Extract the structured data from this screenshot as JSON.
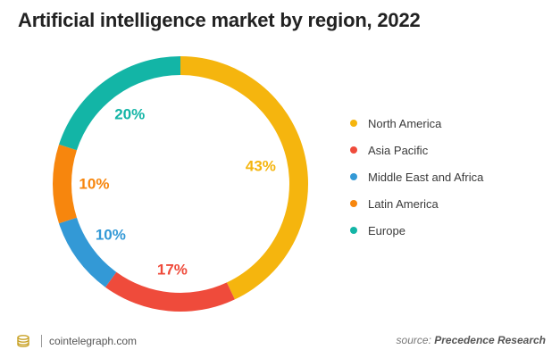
{
  "title": "Artificial intelligence market by region, 2022",
  "chart_data": {
    "type": "pie",
    "title": "Artificial intelligence market by region, 2022",
    "donut": true,
    "categories": [
      "North America",
      "Asia Pacific",
      "Middle East and Africa",
      "Latin America",
      "Europe"
    ],
    "values": [
      43,
      17,
      10,
      10,
      20
    ],
    "value_labels": [
      "43%",
      "17%",
      "10%",
      "10%",
      "20%"
    ],
    "colors": [
      "#F5B50E",
      "#EF4B3B",
      "#3399D6",
      "#F7860D",
      "#13B5A6"
    ],
    "legend_position": "right"
  },
  "footer": {
    "site": "cointelegraph.com",
    "source_prefix": "source:",
    "source_name": "Precedence Research"
  }
}
